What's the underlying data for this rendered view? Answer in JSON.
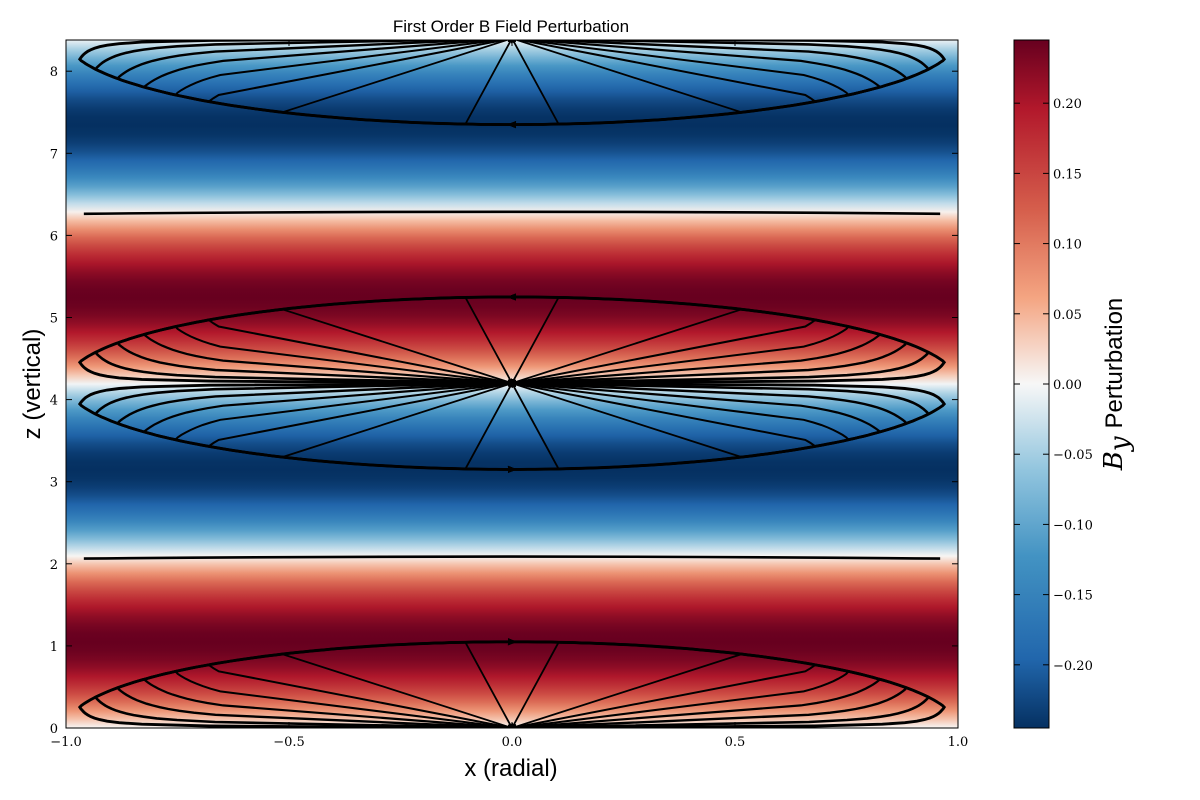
{
  "chart_data": {
    "type": "heatmap",
    "overlay": "streamlines",
    "title": "First Order B Field Perturbation",
    "xlabel": "x (radial)",
    "ylabel": "z (vertical)",
    "xlim": [
      -1.0,
      1.0
    ],
    "ylim": [
      0,
      8.38
    ],
    "x_ticks": [
      "−1.0",
      "−0.5",
      "0.0",
      "0.5",
      "1.0"
    ],
    "x_tick_values": [
      -1.0,
      -0.5,
      0.0,
      0.5,
      1.0
    ],
    "y_ticks": [
      "0",
      "1",
      "2",
      "3",
      "4",
      "5",
      "6",
      "7",
      "8"
    ],
    "y_tick_values": [
      0,
      1,
      2,
      3,
      4,
      5,
      6,
      7,
      8
    ],
    "field": {
      "variable": "B_y perturbation",
      "function": "amplitude * sin(2*pi*z/period)",
      "amplitude": 0.245,
      "period": 4.2,
      "varies_with": "z"
    },
    "colormap": "RdBu_r",
    "colors": {
      "min": "#053061",
      "low": "#2166ac",
      "mid_low": "#92c5de",
      "mid": "#f7f7f7",
      "mid_high": "#f4a582",
      "high": "#b2182b",
      "max": "#67001f"
    },
    "colorbar": {
      "label_symbol": "B",
      "label_subscript": "y",
      "label_text": "Perturbation",
      "range": [
        -0.245,
        0.245
      ],
      "ticks": [
        "−0.20",
        "−0.15",
        "−0.10",
        "−0.05",
        "0.00",
        "0.05",
        "0.10",
        "0.15",
        "0.20"
      ],
      "tick_values": [
        -0.2,
        -0.15,
        -0.1,
        -0.05,
        0.0,
        0.05,
        0.1,
        0.15,
        0.2
      ]
    },
    "streamlines": {
      "color": "#000000",
      "cells": [
        {
          "center_x": 0.0,
          "center_z": 0.0,
          "direction": "clockwise"
        },
        {
          "center_x": 0.0,
          "center_z": 4.2,
          "direction": "counterclockwise"
        },
        {
          "center_x": 0.0,
          "center_z": 8.4,
          "direction": "clockwise"
        }
      ],
      "separatrices_z": [
        2.1,
        6.3
      ]
    }
  }
}
